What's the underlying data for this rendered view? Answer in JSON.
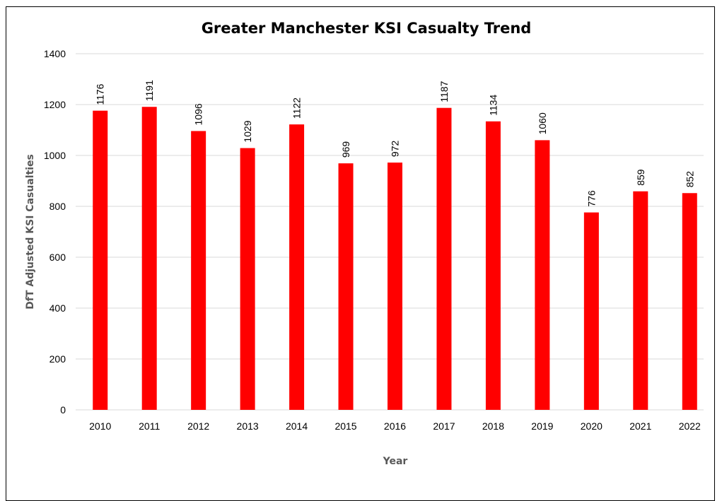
{
  "chart_data": {
    "type": "bar",
    "title": "Greater Manchester KSI Casualty Trend",
    "xlabel": "Year",
    "ylabel": "DfT Adjusted KSI Casualties",
    "categories": [
      "2010",
      "2011",
      "2012",
      "2013",
      "2014",
      "2015",
      "2016",
      "2017",
      "2018",
      "2019",
      "2020",
      "2021",
      "2022"
    ],
    "values": [
      1176,
      1191,
      1096,
      1029,
      1122,
      969,
      972,
      1187,
      1134,
      1060,
      776,
      859,
      852
    ],
    "ylim": [
      0,
      1400
    ],
    "yticks": [
      0,
      200,
      400,
      600,
      800,
      1000,
      1200,
      1400
    ],
    "grid": true,
    "legend": "none",
    "bar_color": "#ff0000",
    "gridline_color": "#d9d9d9"
  }
}
